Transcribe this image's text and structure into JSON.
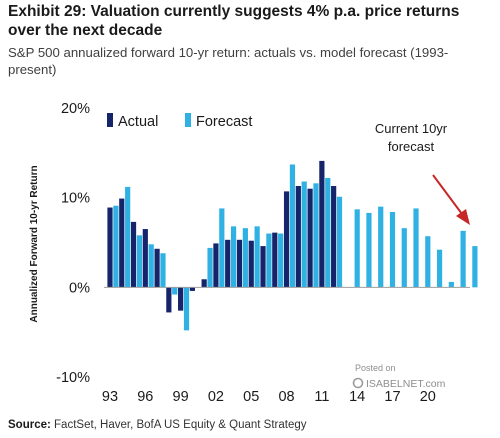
{
  "title": "Exhibit 29: Valuation currently suggests 4% p.a. price returns over the next decade",
  "subtitle": "S&P 500 annualized forward 10-yr return: actuals vs. model forecast (1993-present)",
  "source_label": "Source:",
  "source_text": "FactSet, Haver, BofA US Equity & Quant Strategy",
  "watermark": {
    "line1": "Posted on",
    "brand": "ISABELNET.com"
  },
  "annotation": {
    "line1": "Current 10yr",
    "line2": "forecast"
  },
  "colors": {
    "actual": "#16256b",
    "forecast": "#2fb2e3",
    "arrow": "#c62828",
    "zero_line": "#9e9e9e"
  },
  "chart_data": {
    "type": "bar",
    "title": "Exhibit 29: Valuation currently suggests 4% p.a. price returns over the next decade",
    "ylabel": "Annualized Forward 10-yr Return",
    "ylim": [
      -10,
      20
    ],
    "yticks": [
      -10,
      0,
      10,
      20
    ],
    "ytick_labels": [
      "-10%",
      "0%",
      "10%",
      "20%"
    ],
    "x_range": [
      1993,
      2023.5
    ],
    "xticks": [
      1993,
      1996,
      1999,
      2002,
      2005,
      2008,
      2011,
      2014,
      2017,
      2020
    ],
    "xtick_labels": [
      "93",
      "96",
      "99",
      "02",
      "05",
      "08",
      "11",
      "14",
      "17",
      "20"
    ],
    "legend_position": "top-left",
    "grid": false,
    "series": [
      {
        "name": "Actual",
        "points": [
          {
            "x": 1993.0,
            "y": 8.9
          },
          {
            "x": 1994.0,
            "y": 9.9
          },
          {
            "x": 1995.0,
            "y": 7.3
          },
          {
            "x": 1996.0,
            "y": 6.5
          },
          {
            "x": 1997.0,
            "y": 4.3
          },
          {
            "x": 1998.0,
            "y": -2.8
          },
          {
            "x": 1999.0,
            "y": -2.6
          },
          {
            "x": 2000.0,
            "y": -0.4
          },
          {
            "x": 2001.0,
            "y": 0.9
          },
          {
            "x": 2002.0,
            "y": 4.9
          },
          {
            "x": 2003.0,
            "y": 5.3
          },
          {
            "x": 2004.0,
            "y": 5.3
          },
          {
            "x": 2005.0,
            "y": 5.2
          },
          {
            "x": 2006.0,
            "y": 4.6
          },
          {
            "x": 2007.0,
            "y": 6.1
          },
          {
            "x": 2008.0,
            "y": 10.7
          },
          {
            "x": 2009.0,
            "y": 11.3
          },
          {
            "x": 2010.0,
            "y": 11.0
          },
          {
            "x": 2011.0,
            "y": 14.1
          },
          {
            "x": 2012.0,
            "y": 11.3
          }
        ]
      },
      {
        "name": "Forecast",
        "points": [
          {
            "x": 1993.5,
            "y": 9.1
          },
          {
            "x": 1994.5,
            "y": 11.2
          },
          {
            "x": 1995.5,
            "y": 5.8
          },
          {
            "x": 1996.5,
            "y": 4.8
          },
          {
            "x": 1997.5,
            "y": 3.8
          },
          {
            "x": 1998.5,
            "y": -0.8
          },
          {
            "x": 1999.5,
            "y": -4.8
          },
          {
            "x": 2001.5,
            "y": 4.4
          },
          {
            "x": 2002.5,
            "y": 8.8
          },
          {
            "x": 2003.5,
            "y": 6.8
          },
          {
            "x": 2004.5,
            "y": 6.6
          },
          {
            "x": 2005.5,
            "y": 6.8
          },
          {
            "x": 2006.5,
            "y": 6.0
          },
          {
            "x": 2007.5,
            "y": 6.0
          },
          {
            "x": 2008.5,
            "y": 13.7
          },
          {
            "x": 2009.5,
            "y": 11.8
          },
          {
            "x": 2010.5,
            "y": 11.6
          },
          {
            "x": 2011.5,
            "y": 12.2
          },
          {
            "x": 2012.5,
            "y": 10.1
          },
          {
            "x": 2014.0,
            "y": 8.7
          },
          {
            "x": 2015.0,
            "y": 8.3
          },
          {
            "x": 2016.0,
            "y": 9.0
          },
          {
            "x": 2017.0,
            "y": 8.4
          },
          {
            "x": 2018.0,
            "y": 6.6
          },
          {
            "x": 2019.0,
            "y": 8.8
          },
          {
            "x": 2020.0,
            "y": 5.7
          },
          {
            "x": 2021.0,
            "y": 4.2
          },
          {
            "x": 2022.0,
            "y": 0.6
          },
          {
            "x": 2023.0,
            "y": 6.3
          },
          {
            "x": 2024.0,
            "y": 4.6
          }
        ]
      }
    ]
  }
}
